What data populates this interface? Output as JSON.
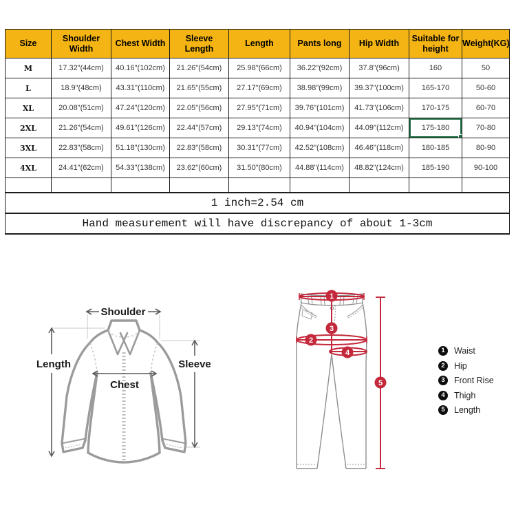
{
  "table": {
    "headers": [
      "Size",
      "Shoulder Width",
      "Chest Width",
      "Sleeve Length",
      "Length",
      "Pants long",
      "Hip Width",
      "Suitable for height",
      "Weight(KG)"
    ],
    "rows": [
      [
        "M",
        "17.32\"(44cm)",
        "40.16\"(102cm)",
        "21.26\"(54cm)",
        "25.98\"(66cm)",
        "36.22\"(92cm)",
        "37.8\"(96cm)",
        "160",
        "50"
      ],
      [
        "L",
        "18.9\"(48cm)",
        "43.31\"(110cm)",
        "21.65\"(55cm)",
        "27.17\"(69cm)",
        "38.98\"(99cm)",
        "39.37\"(100cm)",
        "165-170",
        "50-60"
      ],
      [
        "XL",
        "20.08\"(51cm)",
        "47.24\"(120cm)",
        "22.05\"(56cm)",
        "27.95\"(71cm)",
        "39.76\"(101cm)",
        "41.73\"(106cm)",
        "170-175",
        "60-70"
      ],
      [
        "2XL",
        "21.26\"(54cm)",
        "49.61\"(126cm)",
        "22.44\"(57cm)",
        "29.13\"(74cm)",
        "40.94\"(104cm)",
        "44.09\"(112cm)",
        "175-180",
        "70-80"
      ],
      [
        "3XL",
        "22.83\"(58cm)",
        "51.18\"(130cm)",
        "22.83\"(58cm)",
        "30.31\"(77cm)",
        "42.52\"(108cm)",
        "46.46\"(118cm)",
        "180-185",
        "80-90"
      ],
      [
        "4XL",
        "24.41\"(62cm)",
        "54.33\"(138cm)",
        "23.62\"(60cm)",
        "31.50\"(80cm)",
        "44.88\"(114cm)",
        "48.82\"(124cm)",
        "185-190",
        "90-100"
      ]
    ],
    "selected_cell": {
      "row": 3,
      "col": 7
    },
    "note_inch": "1 inch=2.54 cm",
    "note_measure": "Hand measurement will have discrepancy of about 1-3cm"
  },
  "shirt_diagram": {
    "labels": {
      "shoulder": "Shoulder",
      "length": "Length",
      "sleeve": "Sleeve",
      "chest": "Chest"
    }
  },
  "pants_diagram": {
    "markers": [
      "1",
      "2",
      "3",
      "4",
      "5"
    ]
  },
  "legend": {
    "items": [
      {
        "num": "1",
        "label": "Waist"
      },
      {
        "num": "2",
        "label": "Hip"
      },
      {
        "num": "3",
        "label": "Front Rise"
      },
      {
        "num": "4",
        "label": "Thigh"
      },
      {
        "num": "5",
        "label": "Length"
      }
    ]
  },
  "colors": {
    "header_bg": "#F4B414",
    "selection": "#217346",
    "marker_red": "#C4283B",
    "outline_gray": "#8F8F8F"
  }
}
